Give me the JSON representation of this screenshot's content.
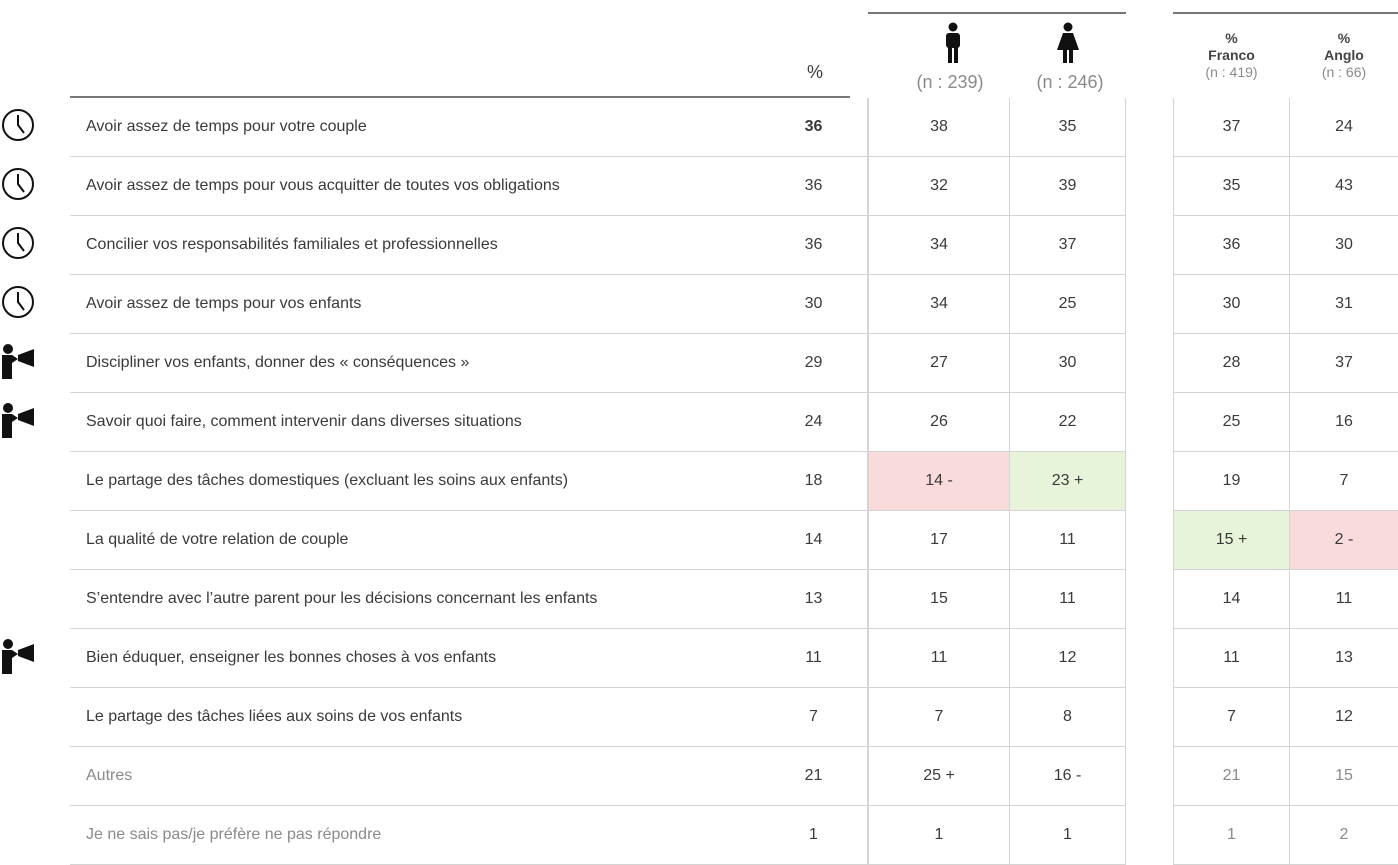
{
  "header": {
    "total": "%",
    "men": "(n : 239)",
    "women": "(n : 246)",
    "franco": [
      "%",
      "Franco",
      "(n : 419)"
    ],
    "anglo": [
      "%",
      "Anglo",
      "(n : 66)"
    ]
  },
  "table": {
    "rows": [
      {
        "icon": "clock",
        "label": "Avoir assez de temps pour votre couple",
        "cells": [
          36,
          38,
          35,
          37,
          24
        ],
        "highlight": [
          null,
          null,
          null,
          null,
          null
        ]
      },
      {
        "icon": "clock",
        "label": "Avoir assez de temps pour vous acquitter de toutes vos obligations",
        "cells": [
          36,
          32,
          39,
          35,
          43
        ],
        "highlight": [
          null,
          null,
          null,
          null,
          null
        ]
      },
      {
        "icon": "clock",
        "label": "Concilier vos responsabilités familiales et professionnelles",
        "cells": [
          36,
          34,
          37,
          36,
          30
        ],
        "highlight": [
          null,
          null,
          null,
          null,
          null
        ]
      },
      {
        "icon": "clock",
        "label": "Avoir assez de temps pour vos enfants",
        "cells": [
          30,
          34,
          25,
          30,
          31
        ],
        "highlight": [
          null,
          null,
          null,
          null,
          null
        ]
      },
      {
        "icon": "megaphone",
        "label": "Discipliner vos enfants, donner des « conséquences »",
        "cells": [
          29,
          27,
          30,
          28,
          37
        ],
        "highlight": [
          null,
          null,
          null,
          null,
          null
        ]
      },
      {
        "icon": "megaphone",
        "label": "Savoir quoi faire, comment intervenir dans diverses situations",
        "cells": [
          24,
          26,
          22,
          25,
          16
        ],
        "highlight": [
          null,
          null,
          null,
          null,
          null
        ]
      },
      {
        "icon": null,
        "label": "Le partage des tâches domestiques (excluant les soins aux enfants)",
        "cells": [
          18,
          "14 -",
          "23 +",
          19,
          7
        ],
        "highlight": [
          null,
          "#f9dbdc",
          "#e8f4da",
          null,
          null
        ]
      },
      {
        "icon": null,
        "label": "La qualité de votre relation de couple",
        "cells": [
          14,
          17,
          11,
          "15 +",
          "2 -"
        ],
        "highlight": [
          null,
          null,
          null,
          "#e8f4da",
          "#f9dbdc"
        ]
      },
      {
        "icon": null,
        "label": "S’entendre avec l’autre parent pour les décisions concernant les enfants",
        "cells": [
          13,
          15,
          11,
          14,
          11
        ],
        "highlight": [
          null,
          null,
          null,
          null,
          null
        ]
      },
      {
        "icon": "megaphone",
        "label": "Bien éduquer, enseigner les bonnes choses à vos enfants",
        "cells": [
          11,
          11,
          12,
          11,
          13
        ],
        "highlight": [
          null,
          null,
          null,
          null,
          null
        ]
      },
      {
        "icon": null,
        "label": "Le partage des tâches liées aux soins de vos enfants",
        "cells": [
          7,
          7,
          8,
          7,
          12
        ],
        "highlight": [
          null,
          null,
          null,
          null,
          null
        ]
      },
      {
        "icon": null,
        "label": "Autres",
        "cells": [
          21,
          "25 +",
          "16 -",
          21,
          15
        ],
        "highlight": [
          null,
          null,
          null,
          null,
          null
        ]
      },
      {
        "icon": null,
        "label": "Je ne sais pas/je préfère ne pas répondre",
        "cells": [
          1,
          1,
          1,
          1,
          2
        ],
        "highlight": [
          null,
          null,
          null,
          null,
          null
        ]
      }
    ]
  }
}
